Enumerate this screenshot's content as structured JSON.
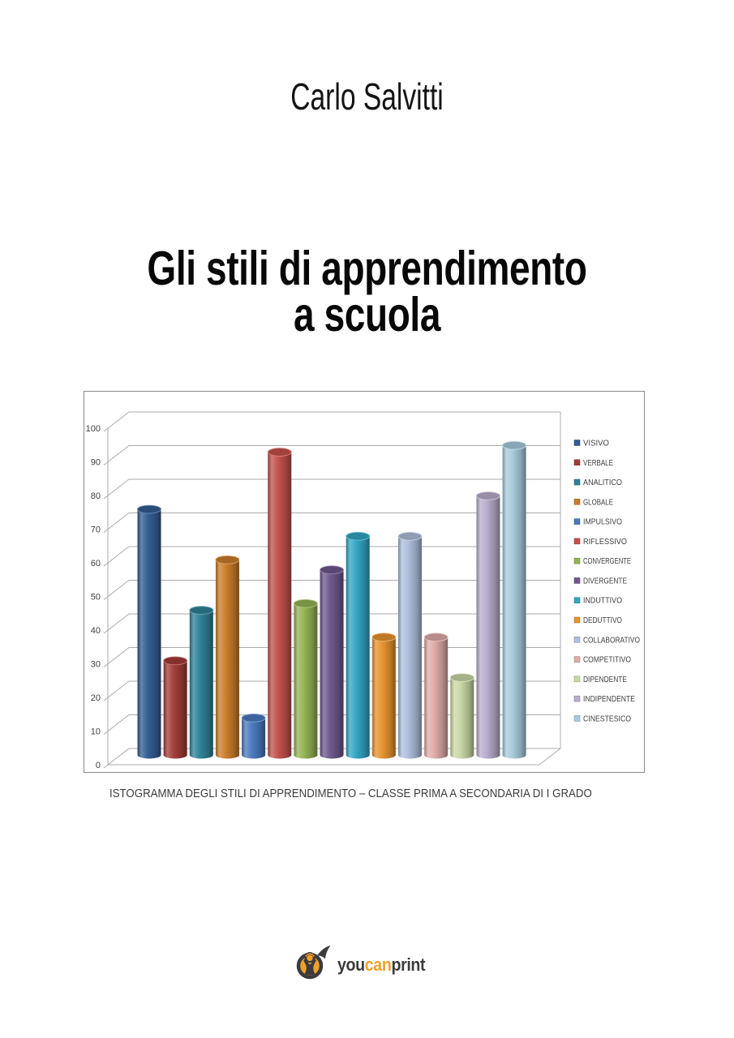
{
  "page": {
    "author": "Carlo Salvitti",
    "title_line1": "Gli stili di apprendimento",
    "title_line2": "a scuola"
  },
  "chart_data": {
    "type": "bar",
    "subtype": "3d-cylinder-histogram",
    "title": "",
    "caption": "ISTOGRAMMA DEGLI STILI DI APPRENDIMENTO – CLASSE PRIMA A SECONDARIA DI I GRADO",
    "categories": [
      "VISIVO",
      "VERBALE",
      "ANALITICO",
      "GLOBALE",
      "IMPULSIVO",
      "RIFLESSIVO",
      "CONVERGENTE",
      "DIVERGENTE",
      "INDUTTIVO",
      "DEDUTTIVO",
      "COLLABORATIVO",
      "COMPETITIVO",
      "DIPENDENTE",
      "INDIPENDENTE",
      "CINESTESICO"
    ],
    "values": [
      73,
      28,
      43,
      58,
      11,
      90,
      45,
      55,
      65,
      35,
      65,
      35,
      23,
      77,
      92
    ],
    "colors": [
      "#335D94",
      "#A33C38",
      "#2E8299",
      "#CC7C29",
      "#4A7ABF",
      "#C4504C",
      "#93B354",
      "#6E578E",
      "#31A6C4",
      "#E8932F",
      "#AEBEDC",
      "#DFABA8",
      "#C9D8A6",
      "#B9ADCC",
      "#A7CBDC"
    ],
    "xlabel": "",
    "ylabel": "",
    "ylim": [
      0,
      100
    ],
    "yticks": [
      0,
      10,
      20,
      30,
      40,
      50,
      60,
      70,
      80,
      90,
      100
    ],
    "grid": true,
    "legend_position": "right",
    "grid_color": "#ababab",
    "tick_label_color": "#3f3f3f",
    "legend_text_color": "#404040"
  },
  "logo": {
    "you": "you",
    "can": "can",
    "print": "print",
    "orange": "#F0A02A",
    "dark": "#3B3B3D"
  }
}
